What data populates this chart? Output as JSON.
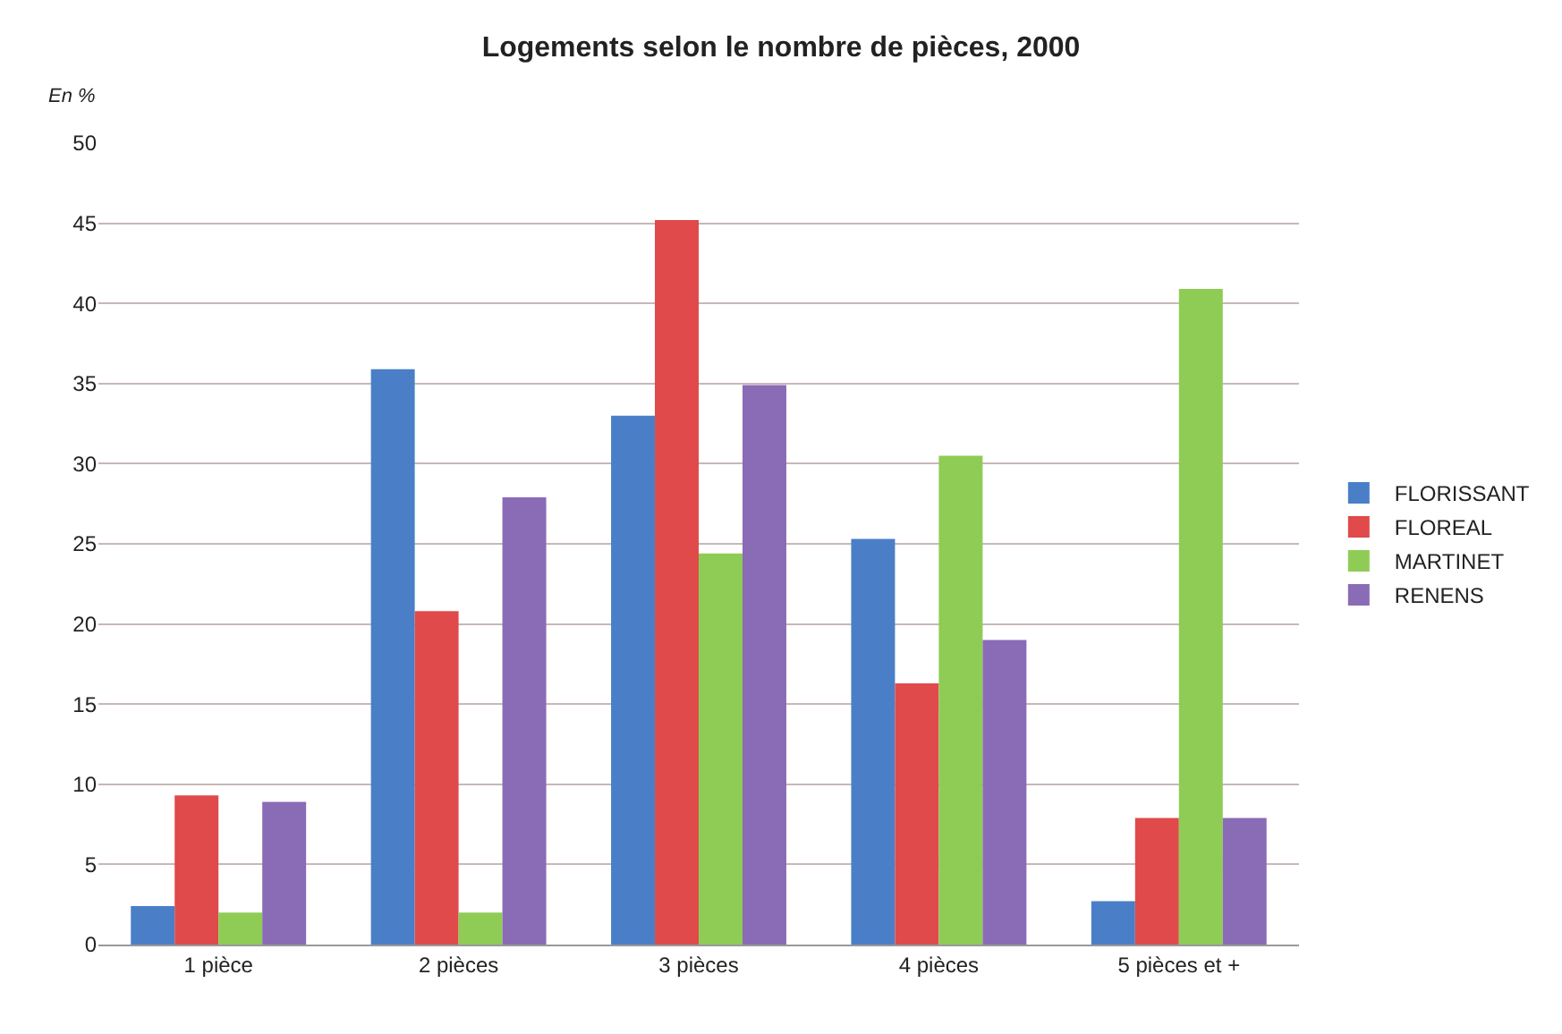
{
  "chart_data": {
    "type": "bar",
    "title": "Logements selon le nombre de pièces, 2000",
    "ylabel": "En %",
    "categories": [
      "1 pièce",
      "2 pièces",
      "3 pièces",
      "4 pièces",
      "5 pièces et +"
    ],
    "series": [
      {
        "name": "FLORISSANT",
        "color": "#4a7fc8",
        "values": [
          2.4,
          35.9,
          33.0,
          25.3,
          2.7
        ]
      },
      {
        "name": "FLOREAL",
        "color": "#e04a4a",
        "values": [
          9.3,
          20.8,
          45.2,
          16.3,
          7.9
        ]
      },
      {
        "name": "MARTINET",
        "color": "#8fcc55",
        "values": [
          2.0,
          2.0,
          24.4,
          30.5,
          40.9
        ]
      },
      {
        "name": "RENENS",
        "color": "#8a6bb5",
        "values": [
          8.9,
          27.9,
          34.9,
          19.0,
          7.9
        ]
      }
    ],
    "ylim": [
      0,
      50
    ],
    "yticks": [
      0,
      5,
      10,
      15,
      20,
      25,
      30,
      35,
      40,
      45,
      50
    ],
    "grid": "y",
    "legend": "right"
  }
}
